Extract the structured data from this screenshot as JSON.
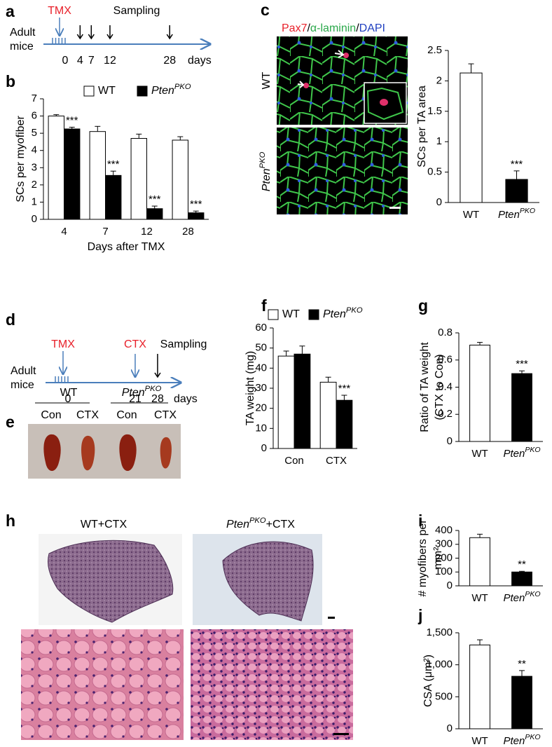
{
  "panel_labels": [
    "a",
    "b",
    "c",
    "d",
    "e",
    "f",
    "g",
    "h",
    "i",
    "j"
  ],
  "timeline_a": {
    "subject": [
      "Adult",
      "mice"
    ],
    "treatment": "TMX",
    "event": "Sampling",
    "days": [
      0,
      4,
      7,
      12,
      28
    ],
    "unit": "days"
  },
  "stain_c": [
    "Pax7",
    "/",
    "α-laminin",
    "/",
    "DAPI"
  ],
  "image_rows_c": [
    {
      "base": "WT"
    },
    {
      "base": "Pten",
      "sup": "PKO"
    }
  ],
  "timeline_d": {
    "subject": [
      "Adult",
      "mice"
    ],
    "treatment": "TMX",
    "injury": "CTX",
    "event": "Sampling",
    "days": [
      0,
      21,
      28
    ],
    "unit": "days"
  },
  "photo_e": {
    "groups": [
      {
        "base": "WT"
      },
      {
        "base": "Pten",
        "sup": "PKO"
      }
    ],
    "conditions": [
      "Con",
      "CTX",
      "Con",
      "CTX"
    ]
  },
  "histology_h": [
    {
      "base": "WT",
      "suffix": "+CTX"
    },
    {
      "base": "Pten",
      "sup": "PKO",
      "suffix": "+CTX"
    }
  ],
  "chart_data": [
    {
      "type": "bar",
      "ylabel": "SCs per myofiber",
      "xlabel": "Days after TMX",
      "categories": [
        "4",
        "7",
        "12",
        "28"
      ],
      "ylim": [
        0,
        7
      ],
      "yticks": [
        0,
        1,
        2,
        3,
        4,
        5,
        6,
        7
      ],
      "series": [
        {
          "name": "WT",
          "color": "#ffffff",
          "values": [
            6.0,
            5.1,
            4.7,
            4.6
          ],
          "errors": [
            0.08,
            0.3,
            0.25,
            0.2
          ]
        },
        {
          "name": "Pten",
          "name_sup": "PKO",
          "color": "#000000",
          "values": [
            5.25,
            2.55,
            0.62,
            0.38
          ],
          "errors": [
            0.1,
            0.25,
            0.15,
            0.1
          ],
          "significance": [
            "***",
            "***",
            "***",
            "***"
          ]
        }
      ]
    },
    {
      "type": "bar",
      "ylabel": "SCs per TA area",
      "categories": [
        "WT",
        "Pten"
      ],
      "category_sups": [
        null,
        "PKO"
      ],
      "colors": [
        "#ffffff",
        "#000000"
      ],
      "values": [
        2.13,
        0.38
      ],
      "errors": [
        0.15,
        0.14
      ],
      "significance": [
        null,
        "***"
      ],
      "ylim": [
        0,
        2.5
      ],
      "yticks": [
        0,
        0.5,
        1,
        1.5,
        2,
        2.5
      ]
    },
    {
      "type": "bar",
      "ylabel": "TA weight (mg)",
      "categories": [
        "Con",
        "CTX"
      ],
      "ylim": [
        0,
        60
      ],
      "yticks": [
        0,
        10,
        20,
        30,
        40,
        50,
        60
      ],
      "series": [
        {
          "name": "WT",
          "color": "#ffffff",
          "values": [
            46,
            33
          ],
          "errors": [
            2.5,
            2.5
          ]
        },
        {
          "name": "Pten",
          "name_sup": "PKO",
          "color": "#000000",
          "values": [
            47,
            24
          ],
          "errors": [
            4,
            2.5
          ],
          "significance": [
            null,
            "***"
          ]
        }
      ]
    },
    {
      "type": "bar",
      "ylabel": [
        "Ratio of TA weight",
        "(CTX to Con)"
      ],
      "categories": [
        "WT",
        "Pten"
      ],
      "category_sups": [
        null,
        "PKO"
      ],
      "colors": [
        "#ffffff",
        "#000000"
      ],
      "values": [
        0.71,
        0.5
      ],
      "errors": [
        0.02,
        0.02
      ],
      "significance": [
        null,
        "***"
      ],
      "ylim": [
        0,
        0.8
      ],
      "yticks": [
        0,
        0.2,
        0.4,
        0.6,
        0.8
      ]
    },
    {
      "type": "bar",
      "ylabel": [
        "# myofibers per",
        "mm²"
      ],
      "categories": [
        "WT",
        "Pten"
      ],
      "category_sups": [
        null,
        "PKO"
      ],
      "colors": [
        "#ffffff",
        "#000000"
      ],
      "values": [
        348,
        100
      ],
      "errors": [
        25,
        5
      ],
      "significance": [
        null,
        "**"
      ],
      "ylim": [
        0,
        400
      ],
      "yticks": [
        0,
        100,
        200,
        300,
        400
      ]
    },
    {
      "type": "bar",
      "ylabel": "CSA (μm²)",
      "categories": [
        "WT",
        "Pten"
      ],
      "category_sups": [
        null,
        "PKO"
      ],
      "colors": [
        "#ffffff",
        "#000000"
      ],
      "values": [
        1310,
        820
      ],
      "errors": [
        80,
        90
      ],
      "significance": [
        null,
        "**"
      ],
      "ylim": [
        0,
        1500
      ],
      "yticks": [
        0,
        500,
        {
          "value": 1000,
          "label": "1,000"
        },
        {
          "value": 1500,
          "label": "1,500"
        }
      ]
    }
  ]
}
